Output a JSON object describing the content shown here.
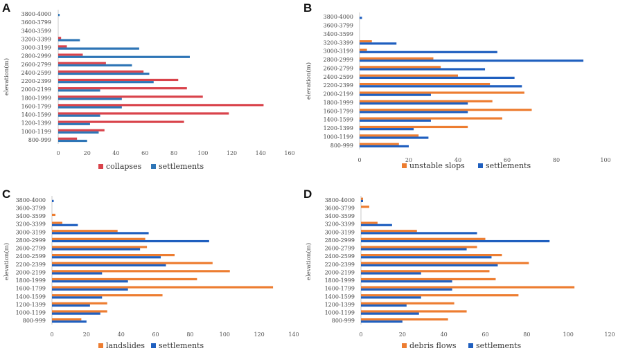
{
  "chart_data": [
    {
      "type": "bar",
      "orientation": "horizontal",
      "panel_label": "A",
      "ylabel": "elevation(m)",
      "xlabel": "",
      "xlim": [
        0,
        160
      ],
      "xticks": [
        0,
        20,
        40,
        60,
        80,
        100,
        120,
        140,
        160
      ],
      "categories": [
        "800-999",
        "1000-1199",
        "1200-1399",
        "1400-1599",
        "1600-1799",
        "1800-1999",
        "2000-2199",
        "2200-2399",
        "2400-2599",
        "2600-2799",
        "2800-2999",
        "3000-3199",
        "3200-3399",
        "3400-3599",
        "3600-3799",
        "3800-4000"
      ],
      "series": [
        {
          "name": "collapses",
          "color": "#d9434b",
          "values": [
            13,
            32,
            87,
            118,
            142,
            100,
            89,
            83,
            59,
            33,
            17,
            6,
            2,
            0,
            0,
            0
          ]
        },
        {
          "name": "settlements",
          "color": "#2e75b6",
          "values": [
            20,
            28,
            22,
            29,
            44,
            44,
            29,
            66,
            63,
            51,
            91,
            56,
            15,
            0,
            0,
            1
          ]
        }
      ],
      "legend_position": "bottom-center"
    },
    {
      "type": "bar",
      "orientation": "horizontal",
      "panel_label": "B",
      "ylabel": "elevation(m)",
      "xlabel": "",
      "xlim": [
        0,
        100
      ],
      "xticks": [
        0,
        20,
        40,
        60,
        80,
        100
      ],
      "categories": [
        "800-999",
        "1000-1199",
        "1200-1399",
        "1400-1599",
        "1600-1799",
        "1800-1999",
        "2000-2199",
        "2200-2399",
        "2400-2599",
        "2600-2799",
        "2800-2999",
        "3000-3199",
        "3200-3399",
        "3400-3599",
        "3600-3799",
        "3800-4000"
      ],
      "series": [
        {
          "name": "unstable slops",
          "color": "#ed7d31",
          "values": [
            16,
            24,
            44,
            58,
            70,
            54,
            67,
            53,
            40,
            33,
            30,
            3,
            5,
            0,
            0,
            0
          ]
        },
        {
          "name": "settlements",
          "color": "#1f5fbf",
          "values": [
            20,
            28,
            22,
            29,
            44,
            44,
            29,
            66,
            63,
            51,
            91,
            56,
            15,
            0,
            0,
            1
          ]
        }
      ],
      "legend_position": "bottom-center"
    },
    {
      "type": "bar",
      "orientation": "horizontal",
      "panel_label": "C",
      "ylabel": "elevation(m)",
      "xlabel": "",
      "xlim": [
        0,
        140
      ],
      "xticks": [
        0,
        20,
        40,
        60,
        80,
        100,
        120,
        140
      ],
      "categories": [
        "800-999",
        "1000-1199",
        "1200-1399",
        "1400-1599",
        "1600-1799",
        "1800-1999",
        "2000-2199",
        "2200-2399",
        "2400-2599",
        "2600-2799",
        "2800-2999",
        "3000-3199",
        "3200-3399",
        "3400-3599",
        "3600-3799",
        "3800-4000"
      ],
      "series": [
        {
          "name": "landslides",
          "color": "#ed7d31",
          "values": [
            17,
            32,
            32,
            64,
            128,
            84,
            103,
            93,
            71,
            55,
            54,
            38,
            6,
            2,
            0,
            0
          ]
        },
        {
          "name": "settlements",
          "color": "#1f5fbf",
          "values": [
            20,
            28,
            22,
            29,
            44,
            44,
            29,
            66,
            63,
            51,
            91,
            56,
            15,
            0,
            0,
            1
          ]
        }
      ],
      "legend_position": "bottom-center"
    },
    {
      "type": "bar",
      "orientation": "horizontal",
      "panel_label": "D",
      "ylabel": "elevation(m)",
      "xlabel": "",
      "xlim": [
        0,
        120
      ],
      "xticks": [
        0,
        20,
        40,
        60,
        80,
        100,
        120
      ],
      "categories": [
        "800-999",
        "1000-1199",
        "1200-1399",
        "1400-1599",
        "1600-1799",
        "1800-1999",
        "2000-2199",
        "2200-2399",
        "2400-2599",
        "2600-2799",
        "2800-2999",
        "3000-3199",
        "3200-3399",
        "3400-3599",
        "3600-3799",
        "3800-4000"
      ],
      "series": [
        {
          "name": "debris flows",
          "color": "#ed7d31",
          "values": [
            42,
            51,
            45,
            76,
            103,
            65,
            62,
            81,
            68,
            56,
            60,
            27,
            8,
            0,
            4,
            1
          ]
        },
        {
          "name": "settlements",
          "color": "#1f5fbf",
          "values": [
            20,
            28,
            22,
            29,
            44,
            44,
            29,
            66,
            63,
            51,
            91,
            56,
            15,
            0,
            0,
            1
          ]
        }
      ],
      "legend_position": "bottom-center"
    }
  ]
}
